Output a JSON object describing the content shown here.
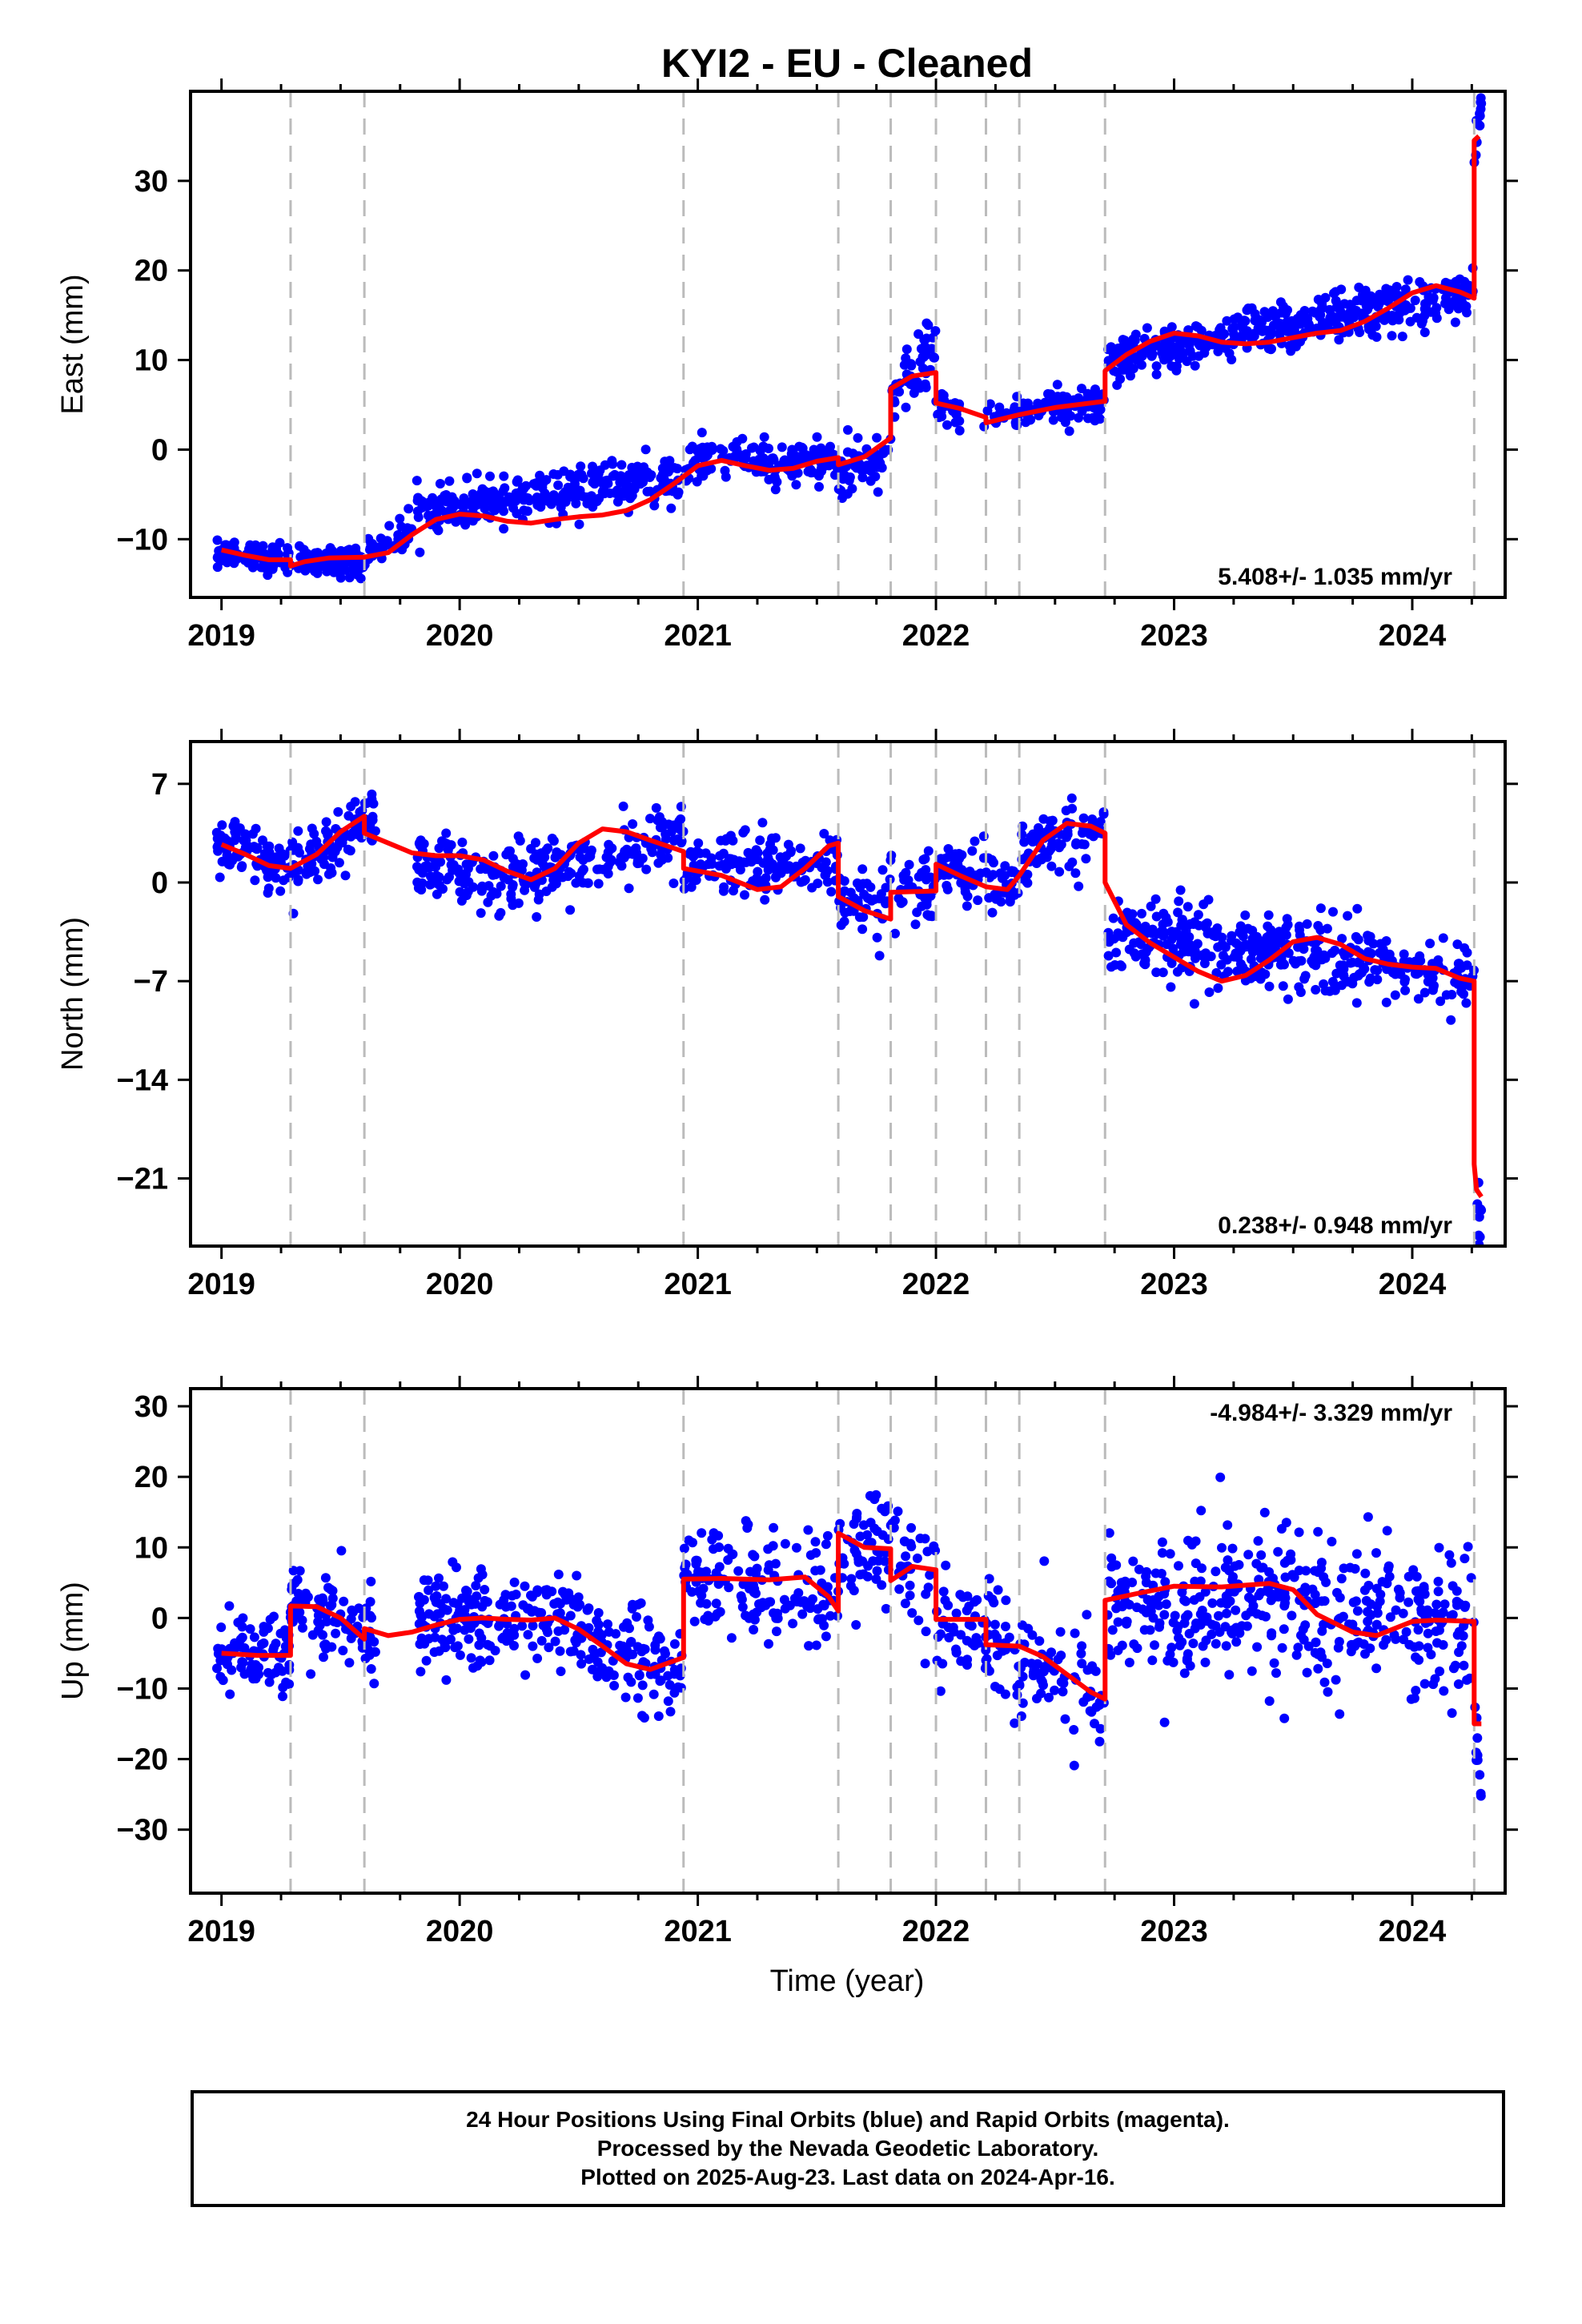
{
  "title": "KYI2  - EU - Cleaned",
  "xlabel": "Time (year)",
  "colors": {
    "points": "#0000ff",
    "model": "#ff0000",
    "breaks": "#bbbbbb"
  },
  "footer": {
    "line1": "24 Hour Positions Using Final Orbits (blue) and Rapid Orbits (magenta).",
    "line2": "Processed by the Nevada Geodetic Laboratory.",
    "line3": "Plotted on 2025-Aug-23. Last data on 2024-Apr-16."
  },
  "chart_data": [
    {
      "type": "scatter",
      "name": "east",
      "ylabel": "East (mm)",
      "rate": "5.408+/- 1.035 mm/yr",
      "rate_pos": "bottom-right",
      "xlim": [
        2018.87,
        2024.39
      ],
      "ylim": [
        -16.5,
        40
      ],
      "yticks": [
        -10,
        0,
        10,
        20,
        30
      ],
      "xticks": [
        2019,
        2020,
        2021,
        2022,
        2023,
        2024
      ],
      "breaks": [
        2019.29,
        2019.6,
        2020.94,
        2021.59,
        2021.81,
        2022.0,
        2022.21,
        2022.35,
        2022.71,
        2024.26
      ],
      "model": [
        [
          2019.0,
          -11.2
        ],
        [
          2019.1,
          -11.8
        ],
        [
          2019.2,
          -12.3
        ],
        [
          2019.29,
          -12.3
        ],
        [
          2019.29,
          -13.0
        ],
        [
          2019.35,
          -12.5
        ],
        [
          2019.45,
          -12.1
        ],
        [
          2019.6,
          -12.0
        ],
        [
          2019.7,
          -11.5
        ],
        [
          2019.8,
          -9.5
        ],
        [
          2019.9,
          -7.8
        ],
        [
          2020.0,
          -7.2
        ],
        [
          2020.1,
          -7.4
        ],
        [
          2020.2,
          -8.0
        ],
        [
          2020.3,
          -8.2
        ],
        [
          2020.4,
          -7.8
        ],
        [
          2020.5,
          -7.5
        ],
        [
          2020.6,
          -7.3
        ],
        [
          2020.7,
          -6.8
        ],
        [
          2020.8,
          -5.6
        ],
        [
          2020.9,
          -3.8
        ],
        [
          2021.0,
          -1.8
        ],
        [
          2021.1,
          -1.2
        ],
        [
          2021.2,
          -1.8
        ],
        [
          2021.3,
          -2.3
        ],
        [
          2021.4,
          -2.1
        ],
        [
          2021.5,
          -1.3
        ],
        [
          2021.59,
          -0.9
        ],
        [
          2021.59,
          -1.7
        ],
        [
          2021.7,
          -0.8
        ],
        [
          2021.81,
          1.3
        ],
        [
          2021.81,
          6.8
        ],
        [
          2021.9,
          8.2
        ],
        [
          2022.0,
          8.6
        ],
        [
          2022.0,
          5.2
        ],
        [
          2022.1,
          4.6
        ],
        [
          2022.21,
          3.6
        ],
        [
          2022.21,
          3.0
        ],
        [
          2022.35,
          3.9
        ],
        [
          2022.5,
          4.7
        ],
        [
          2022.71,
          5.4
        ],
        [
          2022.71,
          8.8
        ],
        [
          2022.8,
          10.6
        ],
        [
          2022.9,
          12.1
        ],
        [
          2023.0,
          13.0
        ],
        [
          2023.1,
          12.7
        ],
        [
          2023.2,
          12.0
        ],
        [
          2023.3,
          11.8
        ],
        [
          2023.4,
          12.0
        ],
        [
          2023.5,
          12.5
        ],
        [
          2023.6,
          13.0
        ],
        [
          2023.7,
          13.3
        ],
        [
          2023.8,
          14.3
        ],
        [
          2023.9,
          15.8
        ],
        [
          2024.0,
          17.5
        ],
        [
          2024.1,
          18.3
        ],
        [
          2024.2,
          17.6
        ],
        [
          2024.26,
          16.9
        ],
        [
          2024.26,
          34.5
        ],
        [
          2024.28,
          35.0
        ]
      ],
      "scatter_segments": [
        {
          "x": [
            2018.98,
            2019.6
          ],
          "y0": -11.8,
          "y1": -12.6,
          "spread": 1.6,
          "n": 180
        },
        {
          "x": [
            2019.6,
            2019.8
          ],
          "y0": -11.5,
          "y1": -9.0,
          "spread": 1.8,
          "n": 45
        },
        {
          "x": [
            2019.82,
            2020.95
          ],
          "y0": -7.0,
          "y1": -3.0,
          "spread": 2.6,
          "n": 290
        },
        {
          "x": [
            2020.95,
            2021.59
          ],
          "y0": -1.5,
          "y1": -1.2,
          "spread": 2.2,
          "n": 160
        },
        {
          "x": [
            2021.59,
            2021.81
          ],
          "y0": -3.0,
          "y1": -0.5,
          "spread": 3.0,
          "n": 55
        },
        {
          "x": [
            2021.81,
            2022.0
          ],
          "y0": 6.0,
          "y1": 11.5,
          "spread": 3.2,
          "n": 50
        },
        {
          "x": [
            2022.0,
            2022.1
          ],
          "y0": 5.0,
          "y1": 4.0,
          "spread": 1.8,
          "n": 30
        },
        {
          "x": [
            2022.2,
            2022.71
          ],
          "y0": 3.5,
          "y1": 5.5,
          "spread": 2.0,
          "n": 120
        },
        {
          "x": [
            2022.72,
            2024.26
          ],
          "y0": 10.0,
          "y1": 17.5,
          "spread": 2.6,
          "n": 420
        },
        {
          "x": [
            2024.26,
            2024.29
          ],
          "y0": 33.0,
          "y1": 38.0,
          "spread": 2.5,
          "n": 12
        }
      ]
    },
    {
      "type": "scatter",
      "name": "north",
      "ylabel": "North (mm)",
      "rate": "0.238+/- 0.948 mm/yr",
      "rate_pos": "bottom-right",
      "xlim": [
        2018.87,
        2024.39
      ],
      "ylim": [
        -25.8,
        10
      ],
      "yticks": [
        -21,
        -14,
        -7,
        0,
        7
      ],
      "xticks": [
        2019,
        2020,
        2021,
        2022,
        2023,
        2024
      ],
      "breaks": [
        2019.29,
        2019.6,
        2020.94,
        2021.59,
        2021.81,
        2022.0,
        2022.21,
        2022.35,
        2022.71,
        2024.26
      ],
      "model": [
        [
          2019.0,
          2.7
        ],
        [
          2019.1,
          2.0
        ],
        [
          2019.2,
          1.2
        ],
        [
          2019.29,
          1.0
        ],
        [
          2019.4,
          2.0
        ],
        [
          2019.5,
          3.6
        ],
        [
          2019.6,
          4.7
        ],
        [
          2019.6,
          3.5
        ],
        [
          2019.7,
          2.8
        ],
        [
          2019.8,
          2.1
        ],
        [
          2019.9,
          1.9
        ],
        [
          2020.0,
          1.9
        ],
        [
          2020.1,
          1.6
        ],
        [
          2020.2,
          0.8
        ],
        [
          2020.3,
          0.2
        ],
        [
          2020.4,
          1.0
        ],
        [
          2020.5,
          2.8
        ],
        [
          2020.6,
          3.8
        ],
        [
          2020.7,
          3.6
        ],
        [
          2020.8,
          3.0
        ],
        [
          2020.94,
          2.2
        ],
        [
          2020.94,
          1.0
        ],
        [
          2021.1,
          0.5
        ],
        [
          2021.25,
          -0.5
        ],
        [
          2021.35,
          -0.3
        ],
        [
          2021.45,
          1.0
        ],
        [
          2021.55,
          2.6
        ],
        [
          2021.59,
          2.8
        ],
        [
          2021.59,
          -1.0
        ],
        [
          2021.7,
          -2.0
        ],
        [
          2021.81,
          -2.6
        ],
        [
          2021.81,
          -0.7
        ],
        [
          2022.0,
          -0.6
        ],
        [
          2022.0,
          1.3
        ],
        [
          2022.1,
          0.5
        ],
        [
          2022.21,
          -0.3
        ],
        [
          2022.3,
          -0.5
        ],
        [
          2022.35,
          0.5
        ],
        [
          2022.45,
          3.0
        ],
        [
          2022.55,
          4.2
        ],
        [
          2022.65,
          4.0
        ],
        [
          2022.71,
          3.5
        ],
        [
          2022.71,
          0.0
        ],
        [
          2022.8,
          -3.0
        ],
        [
          2022.9,
          -4.3
        ],
        [
          2023.0,
          -5.3
        ],
        [
          2023.1,
          -6.3
        ],
        [
          2023.2,
          -7.0
        ],
        [
          2023.3,
          -6.6
        ],
        [
          2023.4,
          -5.5
        ],
        [
          2023.5,
          -4.2
        ],
        [
          2023.6,
          -3.9
        ],
        [
          2023.7,
          -4.4
        ],
        [
          2023.8,
          -5.4
        ],
        [
          2023.9,
          -5.8
        ],
        [
          2024.0,
          -6.0
        ],
        [
          2024.1,
          -6.1
        ],
        [
          2024.2,
          -6.8
        ],
        [
          2024.26,
          -7.0
        ],
        [
          2024.26,
          -20.0
        ],
        [
          2024.27,
          -21.8
        ],
        [
          2024.29,
          -22.3
        ]
      ],
      "scatter_segments": [
        {
          "x": [
            2018.98,
            2019.29
          ],
          "y0": 3.0,
          "y1": 1.0,
          "spread": 1.8,
          "n": 85
        },
        {
          "x": [
            2019.29,
            2019.65
          ],
          "y0": 1.0,
          "y1": 4.8,
          "spread": 2.0,
          "n": 100
        },
        {
          "x": [
            2019.82,
            2020.3
          ],
          "y0": 1.5,
          "y1": 0.0,
          "spread": 2.4,
          "n": 120
        },
        {
          "x": [
            2020.3,
            2020.94
          ],
          "y0": 0.5,
          "y1": 3.0,
          "spread": 2.5,
          "n": 150
        },
        {
          "x": [
            2020.94,
            2021.59
          ],
          "y0": 1.0,
          "y1": 1.5,
          "spread": 2.4,
          "n": 150
        },
        {
          "x": [
            2021.59,
            2022.0
          ],
          "y0": -1.5,
          "y1": -1.0,
          "spread": 2.6,
          "n": 90
        },
        {
          "x": [
            2022.0,
            2022.35
          ],
          "y0": 1.0,
          "y1": -0.5,
          "spread": 2.0,
          "n": 75
        },
        {
          "x": [
            2022.35,
            2022.71
          ],
          "y0": 2.0,
          "y1": 4.0,
          "spread": 2.2,
          "n": 85
        },
        {
          "x": [
            2022.72,
            2024.26
          ],
          "y0": -3.5,
          "y1": -6.5,
          "spread": 2.6,
          "n": 420
        },
        {
          "x": [
            2024.26,
            2024.29
          ],
          "y0": -21.0,
          "y1": -24.0,
          "spread": 1.8,
          "n": 10
        }
      ]
    },
    {
      "type": "scatter",
      "name": "up",
      "ylabel": "Up (mm)",
      "rate": "-4.984+/- 3.329 mm/yr",
      "rate_pos": "top-right",
      "xlim": [
        2018.87,
        2024.39
      ],
      "ylim": [
        -39,
        32.5
      ],
      "yticks": [
        -30,
        -20,
        -10,
        0,
        10,
        20,
        30
      ],
      "xticks": [
        2019,
        2020,
        2021,
        2022,
        2023,
        2024
      ],
      "breaks": [
        2019.29,
        2019.6,
        2020.94,
        2021.59,
        2021.81,
        2022.0,
        2022.21,
        2022.35,
        2022.71,
        2024.26
      ],
      "model": [
        [
          2019.0,
          -5.0
        ],
        [
          2019.15,
          -5.3
        ],
        [
          2019.29,
          -5.3
        ],
        [
          2019.29,
          1.7
        ],
        [
          2019.4,
          1.6
        ],
        [
          2019.5,
          0.0
        ],
        [
          2019.6,
          -3.0
        ],
        [
          2019.6,
          -1.5
        ],
        [
          2019.7,
          -2.5
        ],
        [
          2019.8,
          -2.0
        ],
        [
          2019.9,
          -1.0
        ],
        [
          2020.0,
          -0.2
        ],
        [
          2020.1,
          0.0
        ],
        [
          2020.2,
          -0.2
        ],
        [
          2020.3,
          -0.3
        ],
        [
          2020.4,
          0.0
        ],
        [
          2020.5,
          -1.6
        ],
        [
          2020.6,
          -4.0
        ],
        [
          2020.7,
          -6.5
        ],
        [
          2020.8,
          -7.3
        ],
        [
          2020.94,
          -5.6
        ],
        [
          2020.94,
          5.5
        ],
        [
          2021.1,
          5.6
        ],
        [
          2021.3,
          5.4
        ],
        [
          2021.45,
          5.8
        ],
        [
          2021.55,
          3.0
        ],
        [
          2021.59,
          1.0
        ],
        [
          2021.59,
          12.0
        ],
        [
          2021.7,
          10.0
        ],
        [
          2021.81,
          9.8
        ],
        [
          2021.81,
          5.3
        ],
        [
          2021.9,
          7.3
        ],
        [
          2022.0,
          6.8
        ],
        [
          2022.0,
          -0.2
        ],
        [
          2022.21,
          -0.2
        ],
        [
          2022.21,
          -3.8
        ],
        [
          2022.35,
          -4.0
        ],
        [
          2022.45,
          -5.5
        ],
        [
          2022.55,
          -8.0
        ],
        [
          2022.65,
          -10.5
        ],
        [
          2022.71,
          -11.5
        ],
        [
          2022.71,
          2.5
        ],
        [
          2022.85,
          3.5
        ],
        [
          2023.0,
          4.5
        ],
        [
          2023.2,
          4.4
        ],
        [
          2023.4,
          4.9
        ],
        [
          2023.5,
          4.0
        ],
        [
          2023.6,
          0.5
        ],
        [
          2023.75,
          -2.0
        ],
        [
          2023.85,
          -2.5
        ],
        [
          2024.0,
          -0.5
        ],
        [
          2024.1,
          -0.3
        ],
        [
          2024.26,
          -0.5
        ],
        [
          2024.26,
          -15.0
        ],
        [
          2024.29,
          -15.0
        ]
      ],
      "scatter_segments": [
        {
          "x": [
            2018.98,
            2019.29
          ],
          "y0": -5.0,
          "y1": -5.0,
          "spread": 5.5,
          "n": 85
        },
        {
          "x": [
            2019.29,
            2019.65
          ],
          "y0": 1.5,
          "y1": -3.0,
          "spread": 6.0,
          "n": 95
        },
        {
          "x": [
            2019.82,
            2020.5
          ],
          "y0": 0.0,
          "y1": 0.0,
          "spread": 7.0,
          "n": 190
        },
        {
          "x": [
            2020.5,
            2020.94
          ],
          "y0": -3.0,
          "y1": -8.0,
          "spread": 6.5,
          "n": 110
        },
        {
          "x": [
            2020.94,
            2021.59
          ],
          "y0": 5.5,
          "y1": 3.0,
          "spread": 8.0,
          "n": 150
        },
        {
          "x": [
            2021.59,
            2022.0
          ],
          "y0": 11.0,
          "y1": 7.0,
          "spread": 9.0,
          "n": 90
        },
        {
          "x": [
            2022.0,
            2022.71
          ],
          "y0": -1.0,
          "y1": -10.5,
          "spread": 8.0,
          "n": 150
        },
        {
          "x": [
            2022.72,
            2024.26
          ],
          "y0": 3.0,
          "y1": -1.0,
          "spread": 11.0,
          "n": 420
        },
        {
          "x": [
            2024.26,
            2024.29
          ],
          "y0": -15.0,
          "y1": -25.0,
          "spread": 5.0,
          "n": 10
        }
      ]
    }
  ]
}
